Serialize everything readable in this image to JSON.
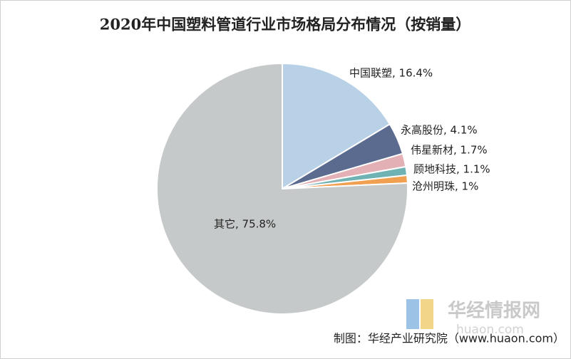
{
  "chart_data": {
    "type": "pie",
    "title": "2020年中国塑料管道行业市场格局分布情况（按销量）",
    "categories": [
      "中国联塑",
      "永高股份",
      "伟星新材",
      "顾地科技",
      "沧州明珠",
      "其它"
    ],
    "values": [
      16.4,
      4.1,
      1.7,
      1.1,
      1,
      75.8
    ],
    "value_labels": [
      "中国联塑, 16.4%",
      "永高股份, 4.1%",
      "伟星新材, 1.7%",
      "顾地科技, 1.1%",
      "沧州明珠, 1%",
      "其它, 75.8%"
    ],
    "colors": [
      "#b9d1e6",
      "#5b6a8f",
      "#e2b0b5",
      "#6fb2b4",
      "#f0a050",
      "#c6c9c9"
    ],
    "source": "制图：华经产业研究院（www.huaon.com）",
    "watermark": "华经情报网",
    "watermark_sub": "huaon.com"
  }
}
